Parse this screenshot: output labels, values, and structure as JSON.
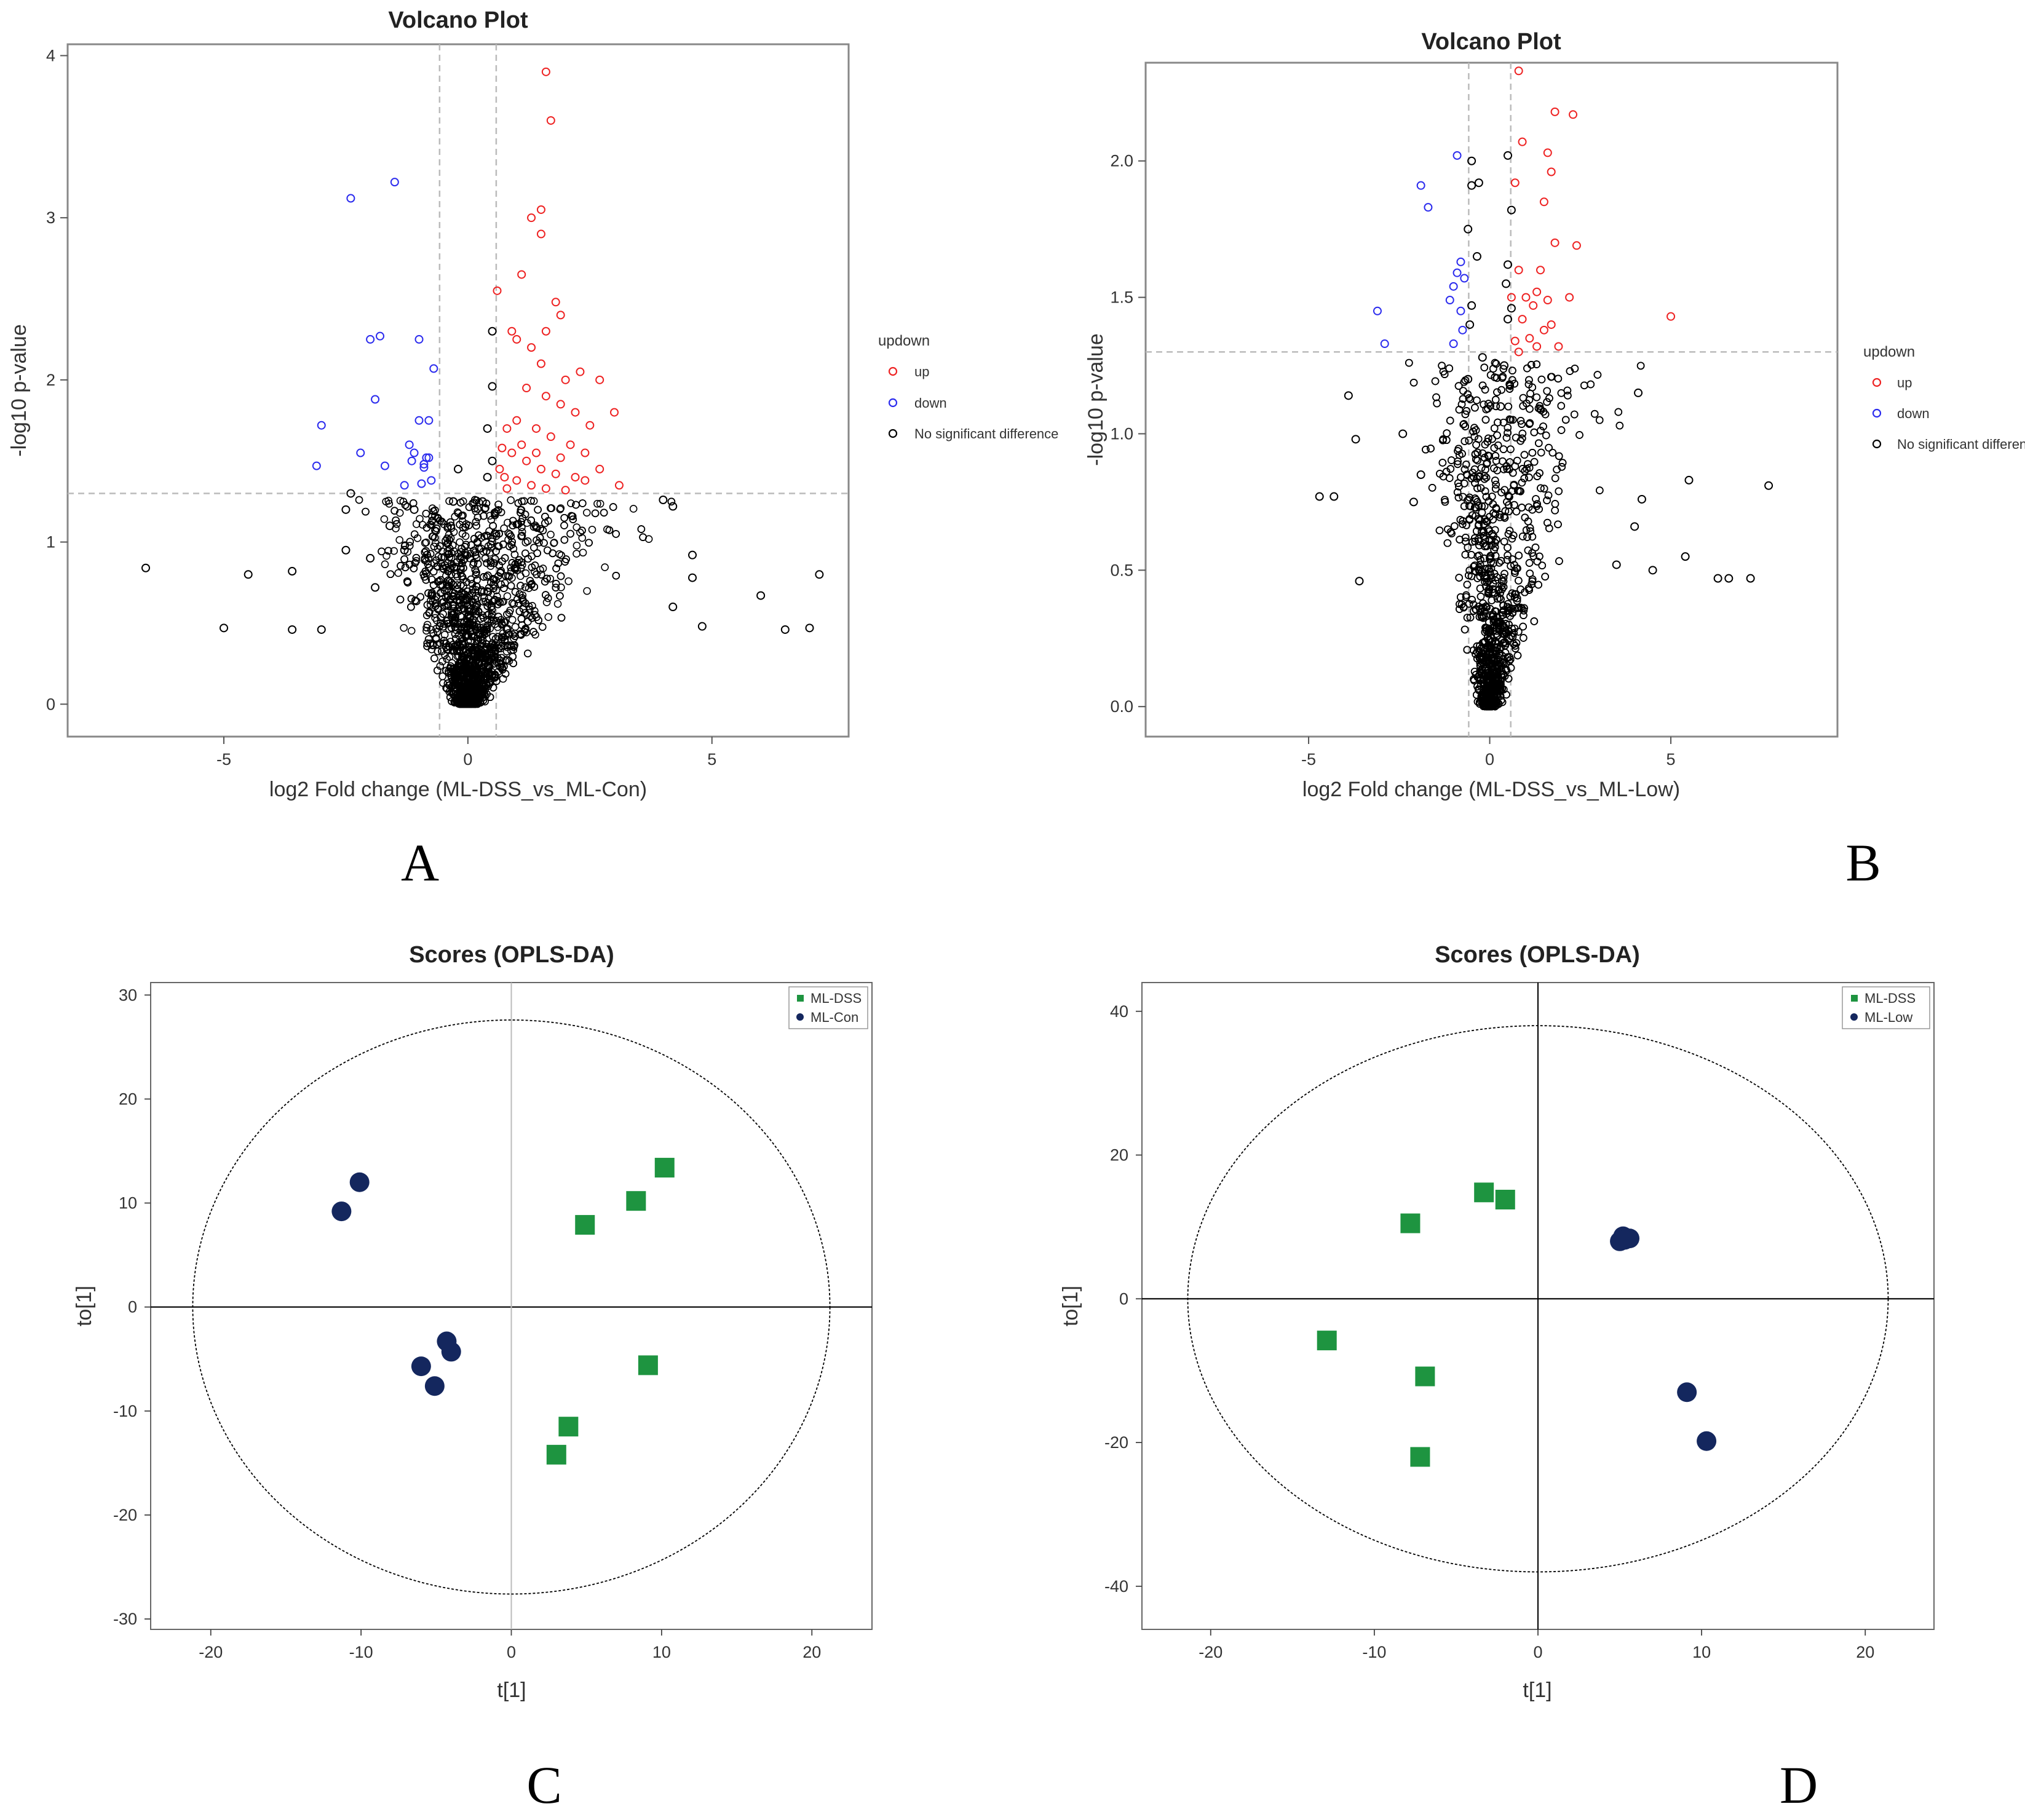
{
  "colors": {
    "up": "#ee2222",
    "down": "#2b2bee",
    "ns": "#000000",
    "ml_dss": "#1e9440",
    "ml_group2": "#14275e",
    "dash": "#bbbbbb"
  },
  "chart_data": [
    {
      "panel": "A",
      "type": "scatter",
      "title": "Volcano Plot",
      "xlabel": "log2 Fold change (ML-DSS_vs_ML-Con)",
      "ylabel": "-log10 p-value",
      "xlim": [
        -8.2,
        7.8
      ],
      "ylim": [
        -0.2,
        4.07
      ],
      "xticks": [
        "-5",
        "0",
        "5"
      ],
      "yticks": [
        "0",
        "1",
        "2",
        "3",
        "4"
      ],
      "fc_threshold": 0.58,
      "p_threshold": 1.3,
      "legend": {
        "title": "updown",
        "entries": [
          "up",
          "down",
          "No significant difference"
        ],
        "position": "right"
      },
      "series": [
        {
          "name": "up",
          "points": [
            [
              1.6,
              3.9
            ],
            [
              1.7,
              3.6
            ],
            [
              1.5,
              3.05
            ],
            [
              1.3,
              3.0
            ],
            [
              1.5,
              2.9
            ],
            [
              1.1,
              2.65
            ],
            [
              1.8,
              2.48
            ],
            [
              0.6,
              2.55
            ],
            [
              0.9,
              2.3
            ],
            [
              1.0,
              2.25
            ],
            [
              1.3,
              2.2
            ],
            [
              1.6,
              2.3
            ],
            [
              1.9,
              2.4
            ],
            [
              1.5,
              2.1
            ],
            [
              2.0,
              2.0
            ],
            [
              2.3,
              2.05
            ],
            [
              2.7,
              2.0
            ],
            [
              3.0,
              1.8
            ],
            [
              1.2,
              1.95
            ],
            [
              1.6,
              1.9
            ],
            [
              1.9,
              1.85
            ],
            [
              2.2,
              1.8
            ],
            [
              2.5,
              1.72
            ],
            [
              0.8,
              1.7
            ],
            [
              1.0,
              1.75
            ],
            [
              1.4,
              1.7
            ],
            [
              1.7,
              1.65
            ],
            [
              2.1,
              1.6
            ],
            [
              2.4,
              1.55
            ],
            [
              0.7,
              1.58
            ],
            [
              0.9,
              1.55
            ],
            [
              1.2,
              1.5
            ],
            [
              1.5,
              1.45
            ],
            [
              1.8,
              1.42
            ],
            [
              2.2,
              1.4
            ],
            [
              2.7,
              1.45
            ],
            [
              3.1,
              1.35
            ],
            [
              0.65,
              1.45
            ],
            [
              1.0,
              1.38
            ],
            [
              1.3,
              1.35
            ],
            [
              1.6,
              1.33
            ],
            [
              0.8,
              1.33
            ],
            [
              1.1,
              1.6
            ],
            [
              1.9,
              1.52
            ],
            [
              2.4,
              1.38
            ],
            [
              0.75,
              1.4
            ],
            [
              1.4,
              1.55
            ],
            [
              2.0,
              1.32
            ]
          ]
        },
        {
          "name": "down",
          "points": [
            [
              -1.5,
              3.22
            ],
            [
              -2.4,
              3.12
            ],
            [
              -1.8,
              2.27
            ],
            [
              -2.0,
              2.25
            ],
            [
              -1.0,
              2.25
            ],
            [
              -0.7,
              2.07
            ],
            [
              -1.9,
              1.88
            ],
            [
              -3.0,
              1.72
            ],
            [
              -0.8,
              1.75
            ],
            [
              -1.0,
              1.75
            ],
            [
              -1.2,
              1.6
            ],
            [
              -0.85,
              1.52
            ],
            [
              -1.15,
              1.5
            ],
            [
              -0.9,
              1.48
            ],
            [
              -1.7,
              1.47
            ],
            [
              -3.1,
              1.47
            ],
            [
              -0.75,
              1.38
            ],
            [
              -0.95,
              1.36
            ],
            [
              -1.3,
              1.35
            ],
            [
              -0.8,
              1.52
            ],
            [
              -1.1,
              1.55
            ],
            [
              -2.2,
              1.55
            ],
            [
              -0.9,
              1.46
            ]
          ]
        },
        {
          "name": "No significant difference",
          "points": [
            [
              -6.6,
              0.84
            ],
            [
              -4.5,
              0.8
            ],
            [
              -3.6,
              0.82
            ],
            [
              -5.0,
              0.47
            ],
            [
              -3.6,
              0.46
            ],
            [
              -3.0,
              0.46
            ],
            [
              -2.5,
              0.95
            ],
            [
              -2.4,
              1.3
            ],
            [
              -2.5,
              1.2
            ],
            [
              -2.0,
              0.9
            ],
            [
              -1.9,
              0.72
            ],
            [
              -1.6,
              1.1
            ],
            [
              -1.3,
              0.95
            ],
            [
              -1.1,
              1.2
            ],
            [
              6.0,
              0.67
            ],
            [
              7.2,
              0.8
            ],
            [
              6.5,
              0.46
            ],
            [
              7.0,
              0.47
            ],
            [
              4.6,
              0.92
            ],
            [
              4.6,
              0.78
            ],
            [
              4.2,
              1.22
            ],
            [
              4.0,
              1.26
            ],
            [
              4.8,
              0.48
            ],
            [
              4.2,
              0.6
            ],
            [
              0.5,
              1.96
            ],
            [
              0.5,
              2.3
            ],
            [
              0.4,
              1.7
            ],
            [
              0.3,
              1.25
            ],
            [
              -0.3,
              1.25
            ],
            [
              -0.35,
              1.1
            ],
            [
              0.5,
              1.5
            ],
            [
              -0.2,
              1.45
            ],
            [
              0.4,
              1.4
            ]
          ]
        }
      ]
    },
    {
      "panel": "B",
      "type": "scatter",
      "title": "Volcano Plot",
      "xlabel": "log2 Fold change (ML-DSS_vs_ML-Low)",
      "ylabel": "-log10 p-value",
      "xlim": [
        -9.5,
        9.6
      ],
      "ylim": [
        -0.11,
        2.36
      ],
      "xticks": [
        "-5",
        "0",
        "5"
      ],
      "yticks": [
        "0.0",
        "0.5",
        "1.0",
        "1.5",
        "2.0"
      ],
      "fc_threshold": 0.58,
      "p_threshold": 1.3,
      "legend": {
        "title": "updown",
        "entries": [
          "up",
          "down",
          "No significant difference"
        ],
        "position": "right"
      },
      "series": [
        {
          "name": "up",
          "points": [
            [
              0.8,
              2.33
            ],
            [
              1.8,
              2.18
            ],
            [
              2.3,
              2.17
            ],
            [
              0.9,
              2.07
            ],
            [
              1.6,
              2.03
            ],
            [
              0.7,
              1.92
            ],
            [
              1.7,
              1.96
            ],
            [
              1.5,
              1.85
            ],
            [
              1.8,
              1.7
            ],
            [
              2.4,
              1.69
            ],
            [
              1.4,
              1.6
            ],
            [
              0.8,
              1.6
            ],
            [
              1.3,
              1.52
            ],
            [
              1.0,
              1.5
            ],
            [
              0.6,
              1.5
            ],
            [
              1.2,
              1.47
            ],
            [
              1.6,
              1.49
            ],
            [
              2.2,
              1.5
            ],
            [
              5.0,
              1.43
            ],
            [
              0.9,
              1.42
            ],
            [
              1.5,
              1.38
            ],
            [
              1.1,
              1.35
            ],
            [
              0.7,
              1.34
            ],
            [
              1.3,
              1.32
            ],
            [
              1.9,
              1.32
            ],
            [
              0.8,
              1.3
            ],
            [
              1.7,
              1.4
            ]
          ]
        },
        {
          "name": "down",
          "points": [
            [
              -0.9,
              2.02
            ],
            [
              -1.9,
              1.91
            ],
            [
              -1.7,
              1.83
            ],
            [
              -0.8,
              1.63
            ],
            [
              -0.9,
              1.59
            ],
            [
              -0.7,
              1.57
            ],
            [
              -1.0,
              1.54
            ],
            [
              -1.1,
              1.49
            ],
            [
              -0.8,
              1.45
            ],
            [
              -3.1,
              1.45
            ],
            [
              -2.9,
              1.33
            ],
            [
              -1.0,
              1.33
            ],
            [
              -0.75,
              1.38
            ]
          ]
        },
        {
          "name": "No significant difference",
          "points": [
            [
              0.5,
              2.02
            ],
            [
              -0.5,
              2.0
            ],
            [
              -0.3,
              1.92
            ],
            [
              -0.5,
              1.91
            ],
            [
              0.6,
              1.82
            ],
            [
              -0.6,
              1.75
            ],
            [
              -0.35,
              1.65
            ],
            [
              0.5,
              1.62
            ],
            [
              0.45,
              1.55
            ],
            [
              -0.5,
              1.47
            ],
            [
              0.6,
              1.46
            ],
            [
              0.5,
              1.42
            ],
            [
              -0.55,
              1.4
            ],
            [
              -3.9,
              1.14
            ],
            [
              -3.7,
              0.98
            ],
            [
              -4.7,
              0.77
            ],
            [
              -4.3,
              0.77
            ],
            [
              -3.6,
              0.46
            ],
            [
              -2.4,
              1.0
            ],
            [
              -2.1,
              0.75
            ],
            [
              -1.9,
              0.85
            ],
            [
              4.1,
              1.15
            ],
            [
              7.7,
              0.81
            ],
            [
              5.5,
              0.83
            ],
            [
              4.2,
              0.76
            ],
            [
              5.4,
              0.55
            ],
            [
              4.0,
              0.66
            ],
            [
              6.3,
              0.47
            ],
            [
              6.6,
              0.47
            ],
            [
              7.2,
              0.47
            ],
            [
              4.5,
              0.5
            ],
            [
              3.5,
              0.52
            ],
            [
              -0.2,
              1.28
            ],
            [
              -0.6,
              1.2
            ],
            [
              0.4,
              1.25
            ],
            [
              0.3,
              1.1
            ]
          ]
        }
      ]
    },
    {
      "panel": "C",
      "type": "scatter",
      "title": "Scores (OPLS-DA)",
      "xlabel": "t[1]",
      "ylabel": "to[1]",
      "xlim": [
        -24.0,
        24.0
      ],
      "ylim": [
        -31.0,
        31.2
      ],
      "xticks": [
        "-20",
        "-10",
        "0",
        "10",
        "20"
      ],
      "yticks": [
        "30",
        "20",
        "10",
        "0",
        "-10",
        "-20",
        "-30"
      ],
      "ellipse": {
        "rx": 21.2,
        "ry": 27.6
      },
      "legend": {
        "entries": [
          "ML-DSS",
          "ML-Con"
        ],
        "position": "top-right"
      },
      "series": [
        {
          "name": "ML-DSS",
          "marker": "square",
          "points": [
            [
              10.2,
              13.4
            ],
            [
              8.3,
              10.2
            ],
            [
              4.9,
              7.9
            ],
            [
              9.1,
              -5.6
            ],
            [
              3.8,
              -11.5
            ],
            [
              3.0,
              -14.2
            ]
          ]
        },
        {
          "name": "ML-Con",
          "marker": "circle",
          "points": [
            [
              -10.1,
              12.0
            ],
            [
              -11.3,
              9.2
            ],
            [
              -4.3,
              -3.3
            ],
            [
              -4.0,
              -4.3
            ],
            [
              -6.0,
              -5.7
            ],
            [
              -5.1,
              -7.6
            ]
          ]
        }
      ]
    },
    {
      "panel": "D",
      "type": "scatter",
      "title": "Scores (OPLS-DA)",
      "xlabel": "t[1]",
      "ylabel": "to[1]",
      "xlim": [
        -24.2,
        24.2
      ],
      "ylim": [
        -46.0,
        44.0
      ],
      "xticks": [
        "-20",
        "-10",
        "0",
        "10",
        "20"
      ],
      "yticks": [
        "40",
        "20",
        "0",
        "-20",
        "-40"
      ],
      "ellipse": {
        "rx": 21.4,
        "ry": 38.0
      },
      "legend": {
        "entries": [
          "ML-DSS",
          "ML-Low"
        ],
        "position": "top-right"
      },
      "series": [
        {
          "name": "ML-DSS",
          "marker": "square",
          "points": [
            [
              -3.3,
              14.8
            ],
            [
              -2.0,
              13.8
            ],
            [
              -7.8,
              10.5
            ],
            [
              -12.9,
              -5.8
            ],
            [
              -6.9,
              -10.8
            ],
            [
              -7.2,
              -22.0
            ]
          ]
        },
        {
          "name": "ML-Low",
          "marker": "circle",
          "points": [
            [
              5.2,
              8.7
            ],
            [
              5.0,
              8.0
            ],
            [
              5.6,
              8.4
            ],
            [
              5.3,
              8.2
            ],
            [
              9.1,
              -13.0
            ],
            [
              10.3,
              -19.8
            ]
          ]
        }
      ]
    }
  ],
  "panel_labels": [
    "A",
    "B",
    "C",
    "D"
  ]
}
